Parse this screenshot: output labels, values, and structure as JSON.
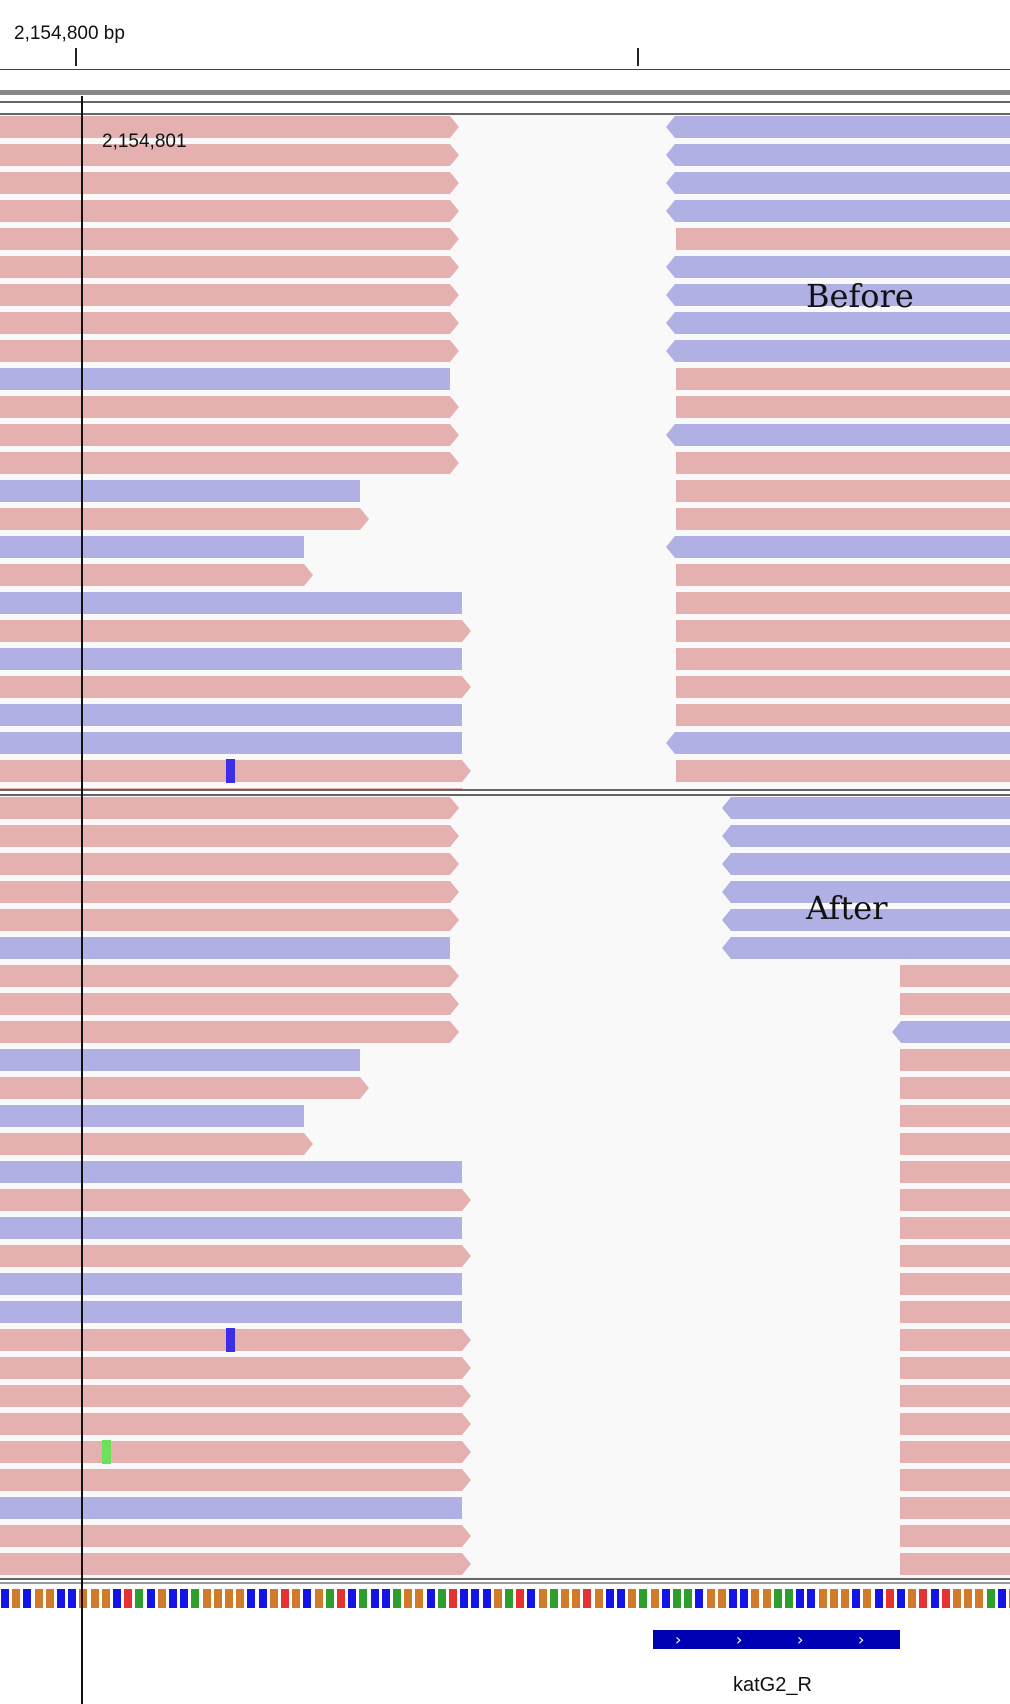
{
  "ruler": {
    "label": "2,154,800 bp"
  },
  "cursor_position_label": "2,154,801",
  "panels": {
    "before": {
      "label": "Before",
      "left_reads": [
        [
          "f",
          459
        ],
        [
          "f",
          459
        ],
        [
          "f",
          459
        ],
        [
          "f",
          459
        ],
        [
          "f",
          459
        ],
        [
          "f",
          459
        ],
        [
          "f",
          459
        ],
        [
          "f",
          459
        ],
        [
          "f",
          459
        ],
        [
          "r",
          450
        ],
        [
          "f",
          459
        ],
        [
          "f",
          459
        ],
        [
          "f",
          459
        ],
        [
          "r",
          360
        ],
        [
          "f",
          369
        ],
        [
          "r",
          304
        ],
        [
          "f",
          313
        ],
        [
          "r",
          462
        ],
        [
          "f",
          471
        ],
        [
          "r",
          462
        ],
        [
          "f",
          471
        ],
        [
          "r",
          462
        ],
        [
          "r",
          462
        ],
        [
          "f",
          471
        ],
        [
          "f",
          471
        ]
      ],
      "right_reads": [
        [
          "r",
          666
        ],
        [
          "r",
          666
        ],
        [
          "r",
          666
        ],
        [
          "r",
          666
        ],
        [
          "f",
          676
        ],
        [
          "r",
          666
        ],
        [
          "r",
          666
        ],
        [
          "r",
          666
        ],
        [
          "r",
          666
        ],
        [
          "f",
          676
        ],
        [
          "f",
          676
        ],
        [
          "r",
          666
        ],
        [
          "f",
          676
        ],
        [
          "f",
          676
        ],
        [
          "f",
          676
        ],
        [
          "r",
          666
        ],
        [
          "f",
          676
        ],
        [
          "f",
          676
        ],
        [
          "f",
          676
        ],
        [
          "f",
          676
        ],
        [
          "f",
          676
        ],
        [
          "f",
          676
        ],
        [
          "r",
          666
        ],
        [
          "f",
          676
        ]
      ],
      "mismatches": [
        {
          "row": 23,
          "x": 226,
          "base": "C",
          "color": "#3b2ee6"
        }
      ]
    },
    "after": {
      "label": "After",
      "left_reads": [
        [
          "f",
          459
        ],
        [
          "f",
          459
        ],
        [
          "f",
          459
        ],
        [
          "f",
          459
        ],
        [
          "f",
          459
        ],
        [
          "r",
          450
        ],
        [
          "f",
          459
        ],
        [
          "f",
          459
        ],
        [
          "f",
          459
        ],
        [
          "r",
          360
        ],
        [
          "f",
          369
        ],
        [
          "r",
          304
        ],
        [
          "f",
          313
        ],
        [
          "r",
          462
        ],
        [
          "f",
          471
        ],
        [
          "r",
          462
        ],
        [
          "f",
          471
        ],
        [
          "r",
          462
        ],
        [
          "r",
          462
        ],
        [
          "f",
          471
        ],
        [
          "f",
          471
        ],
        [
          "f",
          471
        ],
        [
          "f",
          471
        ],
        [
          "f",
          471
        ],
        [
          "f",
          471
        ],
        [
          "r",
          462
        ],
        [
          "f",
          471
        ],
        [
          "f",
          471
        ]
      ],
      "right_reads": [
        [
          "r",
          722
        ],
        [
          "r",
          722
        ],
        [
          "r",
          722
        ],
        [
          "r",
          722
        ],
        [
          "r",
          722
        ],
        [
          "r",
          722
        ],
        [
          "f",
          900
        ],
        [
          "f",
          900
        ],
        [
          "r",
          892
        ],
        [
          "f",
          900
        ],
        [
          "f",
          900
        ],
        [
          "f",
          900
        ],
        [
          "f",
          900
        ],
        [
          "f",
          900
        ],
        [
          "f",
          900
        ],
        [
          "f",
          900
        ],
        [
          "f",
          900
        ],
        [
          "f",
          900
        ],
        [
          "f",
          900
        ],
        [
          "f",
          900
        ],
        [
          "f",
          900
        ],
        [
          "f",
          900
        ],
        [
          "f",
          900
        ],
        [
          "f",
          900
        ],
        [
          "f",
          900
        ],
        [
          "f",
          900
        ],
        [
          "f",
          900
        ],
        [
          "f",
          900
        ]
      ],
      "mismatches": [
        {
          "row": 19,
          "x": 226,
          "base": "C",
          "color": "#3b2ee6"
        },
        {
          "row": 23,
          "x": 102,
          "base": "A",
          "color": "#6ee05a"
        }
      ]
    }
  },
  "colors": {
    "forward_read": "#e4b0b0",
    "reverse_read": "#b0b0e4",
    "base_A": "#2e9e2e",
    "base_C": "#1414e6",
    "base_G": "#d17a2a",
    "base_T": "#e63232",
    "gene": "#0000b3"
  },
  "reference_sequence": "CGCGGCCGGGCTACGCCAGGGGCCGTGCGATCACCAGGCATCCCGATCGAGGTGCCGAGCAACGGCCGGAACCGGGCGCTCGTCTGGGACGCAGCCGCCCGGCGG",
  "gene_track": {
    "name": "katG2_R",
    "strand_glyph": "›"
  }
}
